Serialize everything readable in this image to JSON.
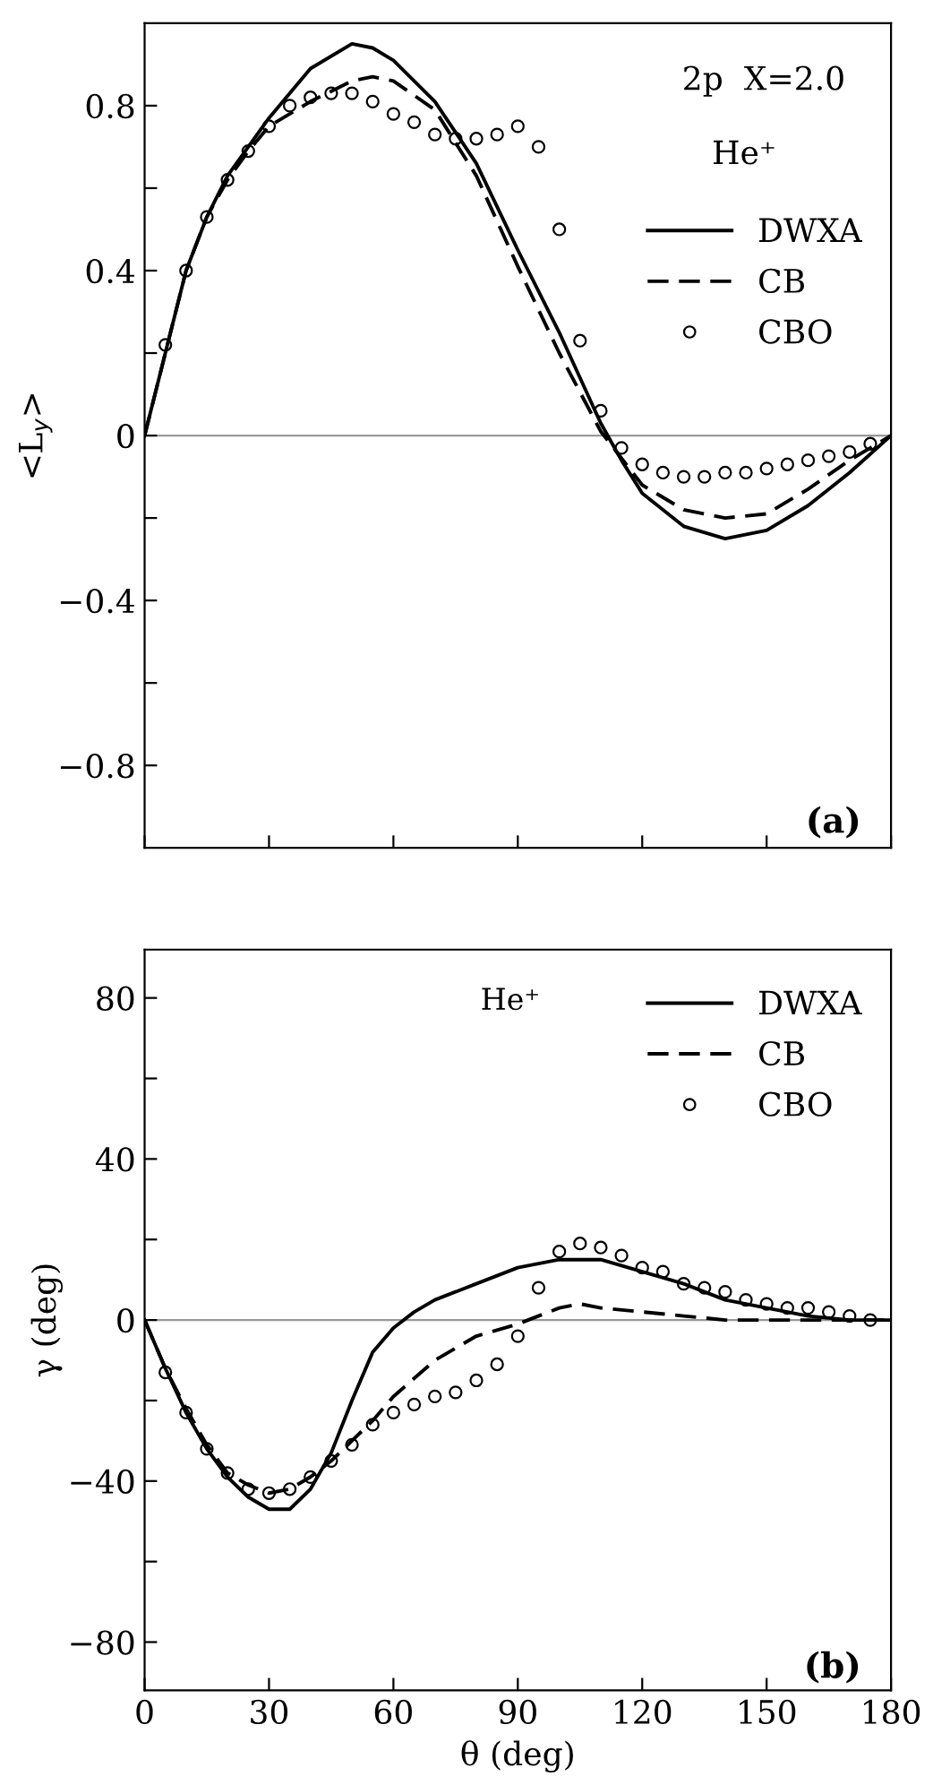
{
  "chart_data": [
    {
      "type": "line",
      "ylabel": "<L$_{y}$>",
      "xlim": [
        0,
        180
      ],
      "ylim": [
        -1.0,
        1.0
      ],
      "xticks": [
        {
          "value": 0,
          "label": null
        },
        {
          "value": 30,
          "label": null
        },
        {
          "value": 60,
          "label": null
        },
        {
          "value": 90,
          "label": null
        },
        {
          "value": 120,
          "label": null
        },
        {
          "value": 150,
          "label": null
        },
        {
          "value": 180,
          "label": null
        }
      ],
      "yticks": [
        {
          "value": -0.8,
          "label": "−0.8"
        },
        {
          "value": -0.6,
          "label": null
        },
        {
          "value": -0.4,
          "label": "−0.4"
        },
        {
          "value": -0.2,
          "label": null
        },
        0,
        {
          "value": 0.2,
          "label": null
        },
        0.4,
        {
          "value": 0.6,
          "label": null
        },
        0.8
      ],
      "tick_labels": "y",
      "grid": false,
      "legend": "top right",
      "annotations": [
        "2p  X=2.0",
        "He⁺",
        "(a)"
      ],
      "ref_lines": [
        {
          "axis": "y",
          "value": 0,
          "color": "#999999"
        }
      ],
      "series": [
        {
          "name": "DWXA",
          "color": "#000000",
          "line_style": "solid",
          "marker": "none",
          "x": [
            0,
            5,
            10,
            15,
            20,
            25,
            30,
            40,
            50,
            55,
            60,
            70,
            80,
            90,
            100,
            110,
            115,
            120,
            130,
            140,
            150,
            160,
            170,
            180
          ],
          "values": [
            0,
            0.2,
            0.4,
            0.53,
            0.63,
            0.7,
            0.77,
            0.89,
            0.95,
            0.94,
            0.91,
            0.81,
            0.66,
            0.45,
            0.25,
            0.03,
            -0.06,
            -0.14,
            -0.22,
            -0.25,
            -0.23,
            -0.17,
            -0.09,
            0
          ]
        },
        {
          "name": "CB",
          "color": "#000000",
          "line_style": "dashed",
          "marker": "none",
          "x": [
            0,
            5,
            10,
            15,
            20,
            25,
            30,
            40,
            50,
            55,
            60,
            70,
            80,
            90,
            100,
            110,
            120,
            130,
            140,
            150,
            160,
            170,
            180
          ],
          "values": [
            0,
            0.2,
            0.4,
            0.53,
            0.62,
            0.69,
            0.75,
            0.81,
            0.86,
            0.87,
            0.86,
            0.79,
            0.63,
            0.41,
            0.2,
            0.01,
            -0.12,
            -0.18,
            -0.2,
            -0.19,
            -0.13,
            -0.06,
            0
          ]
        },
        {
          "name": "CBO",
          "type": "scatter",
          "color": "#000000",
          "marker": "circle",
          "x": [
            5,
            10,
            15,
            20,
            25,
            30,
            35,
            40,
            45,
            50,
            55,
            60,
            65,
            70,
            75,
            80,
            85,
            90,
            95,
            100,
            105,
            110,
            115,
            120,
            125,
            130,
            135,
            140,
            145,
            150,
            155,
            160,
            165,
            170,
            175
          ],
          "values": [
            0.22,
            0.4,
            0.53,
            0.62,
            0.69,
            0.75,
            0.8,
            0.82,
            0.83,
            0.83,
            0.81,
            0.78,
            0.76,
            0.73,
            0.72,
            0.72,
            0.73,
            0.75,
            0.7,
            0.5,
            0.23,
            0.06,
            -0.03,
            -0.07,
            -0.09,
            -0.1,
            -0.1,
            -0.09,
            -0.09,
            -0.08,
            -0.07,
            -0.06,
            -0.05,
            -0.04,
            -0.02
          ]
        }
      ]
    },
    {
      "type": "line",
      "xlabel": "θ (deg)",
      "ylabel": "γ (deg)",
      "xlim": [
        0,
        180
      ],
      "ylim": [
        -92,
        92
      ],
      "xticks": [
        0,
        30,
        60,
        90,
        120,
        150,
        180
      ],
      "yticks": [
        {
          "value": -80,
          "label": "−80"
        },
        {
          "value": -60,
          "label": null
        },
        {
          "value": -40,
          "label": "−40"
        },
        {
          "value": -20,
          "label": null
        },
        0,
        {
          "value": 20,
          "label": null
        },
        40,
        {
          "value": 60,
          "label": null
        },
        80
      ],
      "grid": false,
      "legend": "top right",
      "annotations": [
        "He⁺",
        "(b)"
      ],
      "ref_lines": [
        {
          "axis": "y",
          "value": 0,
          "color": "#999999"
        }
      ],
      "series": [
        {
          "name": "DWXA",
          "color": "#000000",
          "line_style": "solid",
          "marker": "none",
          "x": [
            0,
            5,
            10,
            15,
            20,
            25,
            30,
            35,
            40,
            45,
            50,
            55,
            60,
            65,
            70,
            80,
            90,
            100,
            105,
            110,
            120,
            130,
            140,
            150,
            160,
            170,
            180
          ],
          "values": [
            0,
            -12,
            -23,
            -32,
            -39,
            -44,
            -47,
            -47,
            -42,
            -33,
            -20,
            -8,
            -2,
            2,
            5,
            9,
            13,
            15,
            15,
            15,
            12,
            9,
            5,
            3,
            1,
            0,
            0
          ]
        },
        {
          "name": "CB",
          "color": "#000000",
          "line_style": "dashed",
          "marker": "none",
          "x": [
            0,
            5,
            10,
            15,
            20,
            25,
            30,
            35,
            40,
            45,
            50,
            55,
            60,
            70,
            80,
            90,
            100,
            105,
            110,
            120,
            130,
            140,
            150,
            180
          ],
          "values": [
            0,
            -12,
            -22,
            -31,
            -38,
            -41,
            -43,
            -42,
            -39,
            -35,
            -30,
            -25,
            -19,
            -10,
            -4,
            -1,
            3,
            4,
            3,
            2,
            1,
            0,
            0,
            0
          ]
        },
        {
          "name": "CBO",
          "type": "scatter",
          "color": "#000000",
          "marker": "circle",
          "x": [
            5,
            10,
            15,
            20,
            25,
            30,
            35,
            40,
            45,
            50,
            55,
            60,
            65,
            70,
            75,
            80,
            85,
            90,
            95,
            100,
            105,
            110,
            115,
            120,
            125,
            130,
            135,
            140,
            145,
            150,
            155,
            160,
            165,
            170,
            175
          ],
          "values": [
            -13,
            -23,
            -32,
            -38,
            -42,
            -43,
            -42,
            -39,
            -35,
            -31,
            -26,
            -23,
            -21,
            -19,
            -18,
            -15,
            -11,
            -4,
            8,
            17,
            19,
            18,
            16,
            13,
            12,
            9,
            8,
            7,
            5,
            4,
            3,
            3,
            2,
            1,
            0
          ]
        }
      ]
    }
  ]
}
